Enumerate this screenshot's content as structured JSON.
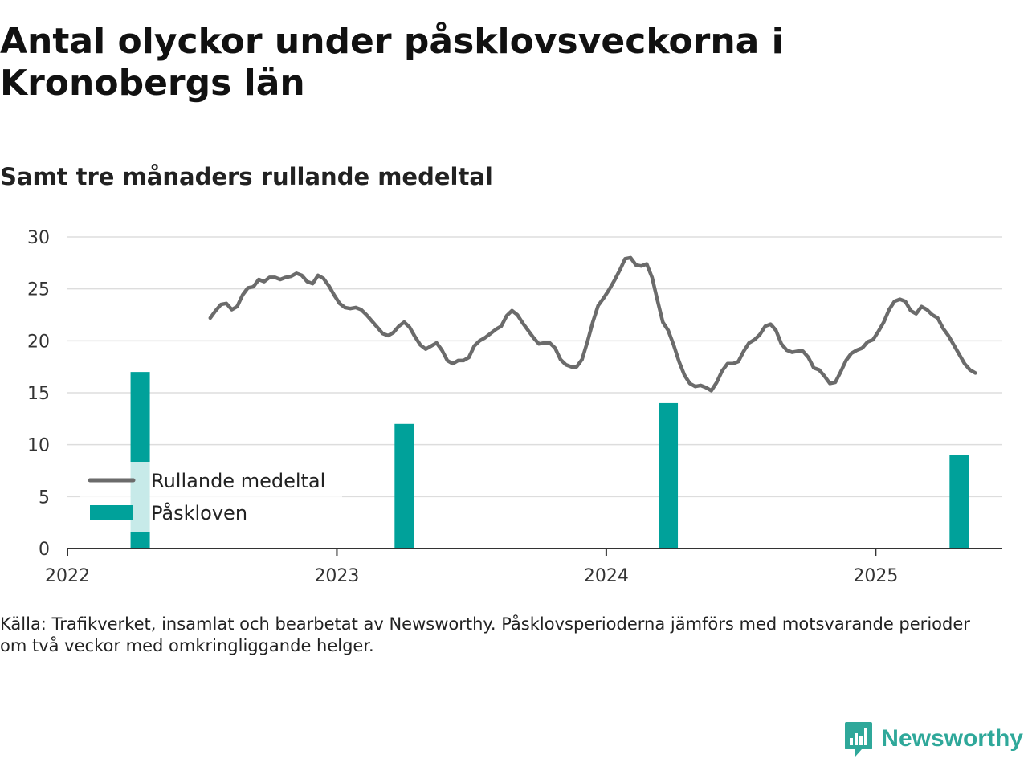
{
  "title": "Antal olyckor under påsklovsveckorna i Kronobergs län",
  "subtitle": "Samt tre månaders rullande medeltal",
  "note_lines": [
    "Källa: Trafikverket, insamlat och bearbetat av Newsworthy. Påsklovsperioderna jämförs med motsvarande perioder",
    "om två veckor med omkringliggande helger."
  ],
  "brand": {
    "name": "Newsworthy",
    "logo_icon": "newsworthy-logo-icon"
  },
  "colors": {
    "line": "#6b6b6b",
    "bar": "#00a19a",
    "grid": "#dddddd",
    "axis": "#333333"
  },
  "chart_data": {
    "type": "bar+line",
    "x_ticks": [
      "2022",
      "2023",
      "2024",
      "2025"
    ],
    "y_ticks": [
      0,
      5,
      10,
      15,
      20,
      25,
      30
    ],
    "xlim": [
      2022.0,
      2025.47
    ],
    "ylim": [
      0,
      30
    ],
    "grid": true,
    "legend": {
      "placement": "bottom-left",
      "entries": [
        {
          "label": "Rullande medeltal",
          "kind": "line",
          "series": "line"
        },
        {
          "label": "Påskloven",
          "kind": "bar",
          "series": "bars"
        }
      ]
    },
    "bars": [
      {
        "x": 2022.27,
        "value": 17
      },
      {
        "x": 2023.25,
        "value": 12
      },
      {
        "x": 2024.23,
        "value": 14
      },
      {
        "x": 2025.31,
        "value": 9
      }
    ],
    "line": [
      [
        2022.53,
        22.2
      ],
      [
        2022.55,
        22.9
      ],
      [
        2022.57,
        23.5
      ],
      [
        2022.59,
        23.6
      ],
      [
        2022.61,
        23.0
      ],
      [
        2022.63,
        23.3
      ],
      [
        2022.65,
        24.4
      ],
      [
        2022.67,
        25.1
      ],
      [
        2022.69,
        25.2
      ],
      [
        2022.71,
        25.9
      ],
      [
        2022.73,
        25.7
      ],
      [
        2022.75,
        26.1
      ],
      [
        2022.77,
        26.1
      ],
      [
        2022.79,
        25.9
      ],
      [
        2022.81,
        26.1
      ],
      [
        2022.83,
        26.2
      ],
      [
        2022.85,
        26.5
      ],
      [
        2022.87,
        26.3
      ],
      [
        2022.89,
        25.7
      ],
      [
        2022.91,
        25.5
      ],
      [
        2022.93,
        26.3
      ],
      [
        2022.95,
        26.0
      ],
      [
        2022.97,
        25.3
      ],
      [
        2022.99,
        24.4
      ],
      [
        2023.01,
        23.6
      ],
      [
        2023.03,
        23.2
      ],
      [
        2023.05,
        23.1
      ],
      [
        2023.07,
        23.2
      ],
      [
        2023.09,
        23.0
      ],
      [
        2023.11,
        22.5
      ],
      [
        2023.13,
        21.9
      ],
      [
        2023.15,
        21.3
      ],
      [
        2023.17,
        20.7
      ],
      [
        2023.19,
        20.5
      ],
      [
        2023.21,
        20.8
      ],
      [
        2023.23,
        21.4
      ],
      [
        2023.25,
        21.8
      ],
      [
        2023.27,
        21.3
      ],
      [
        2023.29,
        20.4
      ],
      [
        2023.31,
        19.6
      ],
      [
        2023.33,
        19.2
      ],
      [
        2023.35,
        19.5
      ],
      [
        2023.37,
        19.8
      ],
      [
        2023.39,
        19.1
      ],
      [
        2023.41,
        18.1
      ],
      [
        2023.43,
        17.8
      ],
      [
        2023.45,
        18.1
      ],
      [
        2023.47,
        18.1
      ],
      [
        2023.49,
        18.4
      ],
      [
        2023.51,
        19.5
      ],
      [
        2023.53,
        20.0
      ],
      [
        2023.55,
        20.3
      ],
      [
        2023.57,
        20.7
      ],
      [
        2023.59,
        21.1
      ],
      [
        2023.61,
        21.4
      ],
      [
        2023.63,
        22.4
      ],
      [
        2023.65,
        22.9
      ],
      [
        2023.67,
        22.5
      ],
      [
        2023.69,
        21.7
      ],
      [
        2023.71,
        21.0
      ],
      [
        2023.73,
        20.3
      ],
      [
        2023.75,
        19.7
      ],
      [
        2023.77,
        19.8
      ],
      [
        2023.79,
        19.8
      ],
      [
        2023.81,
        19.3
      ],
      [
        2023.83,
        18.2
      ],
      [
        2023.85,
        17.7
      ],
      [
        2023.87,
        17.5
      ],
      [
        2023.89,
        17.5
      ],
      [
        2023.91,
        18.2
      ],
      [
        2023.93,
        19.9
      ],
      [
        2023.95,
        21.8
      ],
      [
        2023.97,
        23.4
      ],
      [
        2023.99,
        24.1
      ],
      [
        2024.01,
        24.9
      ],
      [
        2024.03,
        25.8
      ],
      [
        2024.05,
        26.8
      ],
      [
        2024.07,
        27.9
      ],
      [
        2024.09,
        28.0
      ],
      [
        2024.11,
        27.3
      ],
      [
        2024.13,
        27.2
      ],
      [
        2024.15,
        27.4
      ],
      [
        2024.17,
        26.1
      ],
      [
        2024.19,
        23.9
      ],
      [
        2024.21,
        21.8
      ],
      [
        2024.23,
        21.0
      ],
      [
        2024.25,
        19.6
      ],
      [
        2024.27,
        18.0
      ],
      [
        2024.29,
        16.7
      ],
      [
        2024.31,
        15.9
      ],
      [
        2024.33,
        15.6
      ],
      [
        2024.35,
        15.7
      ],
      [
        2024.37,
        15.5
      ],
      [
        2024.39,
        15.2
      ],
      [
        2024.41,
        16.0
      ],
      [
        2024.43,
        17.1
      ],
      [
        2024.45,
        17.8
      ],
      [
        2024.47,
        17.8
      ],
      [
        2024.49,
        18.0
      ],
      [
        2024.51,
        19.0
      ],
      [
        2024.53,
        19.8
      ],
      [
        2024.55,
        20.1
      ],
      [
        2024.57,
        20.6
      ],
      [
        2024.59,
        21.4
      ],
      [
        2024.61,
        21.6
      ],
      [
        2024.63,
        21.0
      ],
      [
        2024.65,
        19.7
      ],
      [
        2024.67,
        19.1
      ],
      [
        2024.69,
        18.9
      ],
      [
        2024.71,
        19.0
      ],
      [
        2024.73,
        19.0
      ],
      [
        2024.75,
        18.4
      ],
      [
        2024.77,
        17.4
      ],
      [
        2024.79,
        17.2
      ],
      [
        2024.81,
        16.6
      ],
      [
        2024.83,
        15.9
      ],
      [
        2024.85,
        16.0
      ],
      [
        2024.87,
        17.0
      ],
      [
        2024.89,
        18.1
      ],
      [
        2024.91,
        18.8
      ],
      [
        2024.93,
        19.1
      ],
      [
        2024.95,
        19.3
      ],
      [
        2024.97,
        19.9
      ],
      [
        2024.99,
        20.1
      ],
      [
        2025.01,
        20.9
      ],
      [
        2025.03,
        21.8
      ],
      [
        2025.05,
        23.0
      ],
      [
        2025.07,
        23.8
      ],
      [
        2025.09,
        24.0
      ],
      [
        2025.11,
        23.8
      ],
      [
        2025.13,
        22.9
      ],
      [
        2025.15,
        22.6
      ],
      [
        2025.17,
        23.3
      ],
      [
        2025.19,
        23.0
      ],
      [
        2025.21,
        22.5
      ],
      [
        2025.23,
        22.2
      ],
      [
        2025.25,
        21.2
      ],
      [
        2025.27,
        20.5
      ],
      [
        2025.29,
        19.6
      ],
      [
        2025.31,
        18.7
      ],
      [
        2025.33,
        17.8
      ],
      [
        2025.35,
        17.2
      ],
      [
        2025.37,
        16.9
      ]
    ]
  }
}
